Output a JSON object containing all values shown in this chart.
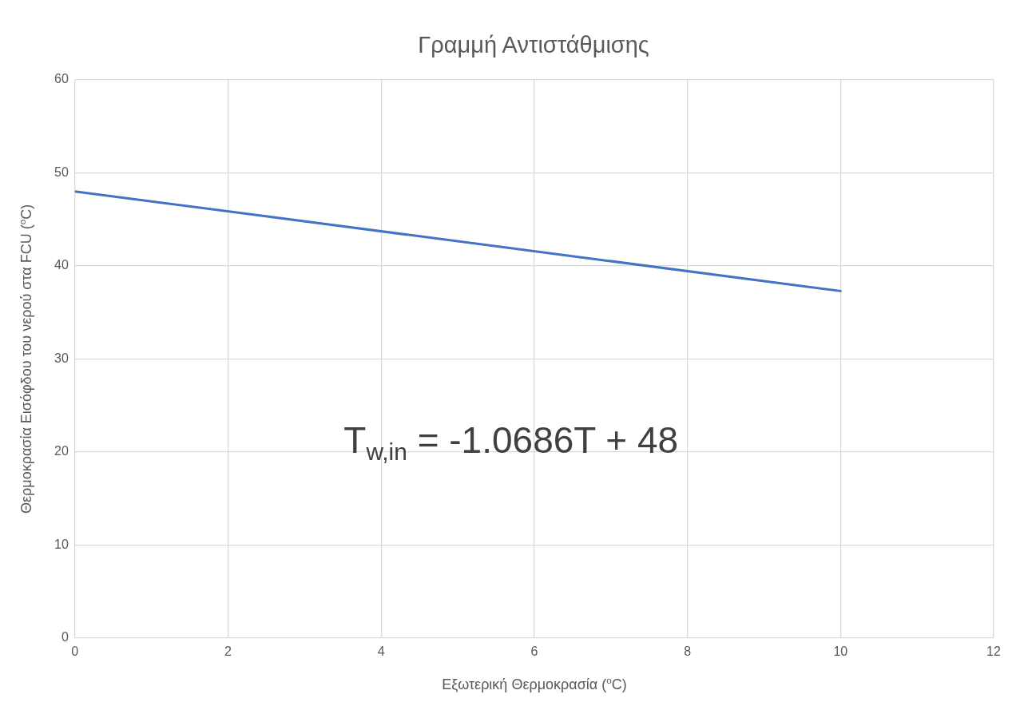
{
  "chart_data": {
    "type": "line",
    "title": "Γραμμή Αντιστάθμισης",
    "xlabel": "Εξωτερική Θερμοκρασία ($^{o}$C)",
    "ylabel": "Θερμοκρασία Εισόφδου του νερού στα FCU ($^{o}$C)",
    "x": [
      0,
      10
    ],
    "series": [
      {
        "color": "#4472c4",
        "values": [
          48,
          37.3
        ]
      }
    ],
    "xlim": [
      0,
      12
    ],
    "xticks": [
      0,
      2,
      4,
      6,
      8,
      10,
      12
    ],
    "ylim": [
      0,
      60
    ],
    "yticks": [
      0,
      10,
      20,
      30,
      40,
      50,
      60
    ],
    "grid": true,
    "legend": false,
    "marker": "none",
    "line_style": "solid",
    "annotations": [
      "T$_{w,in}$ = -1.0686T + 48"
    ]
  }
}
